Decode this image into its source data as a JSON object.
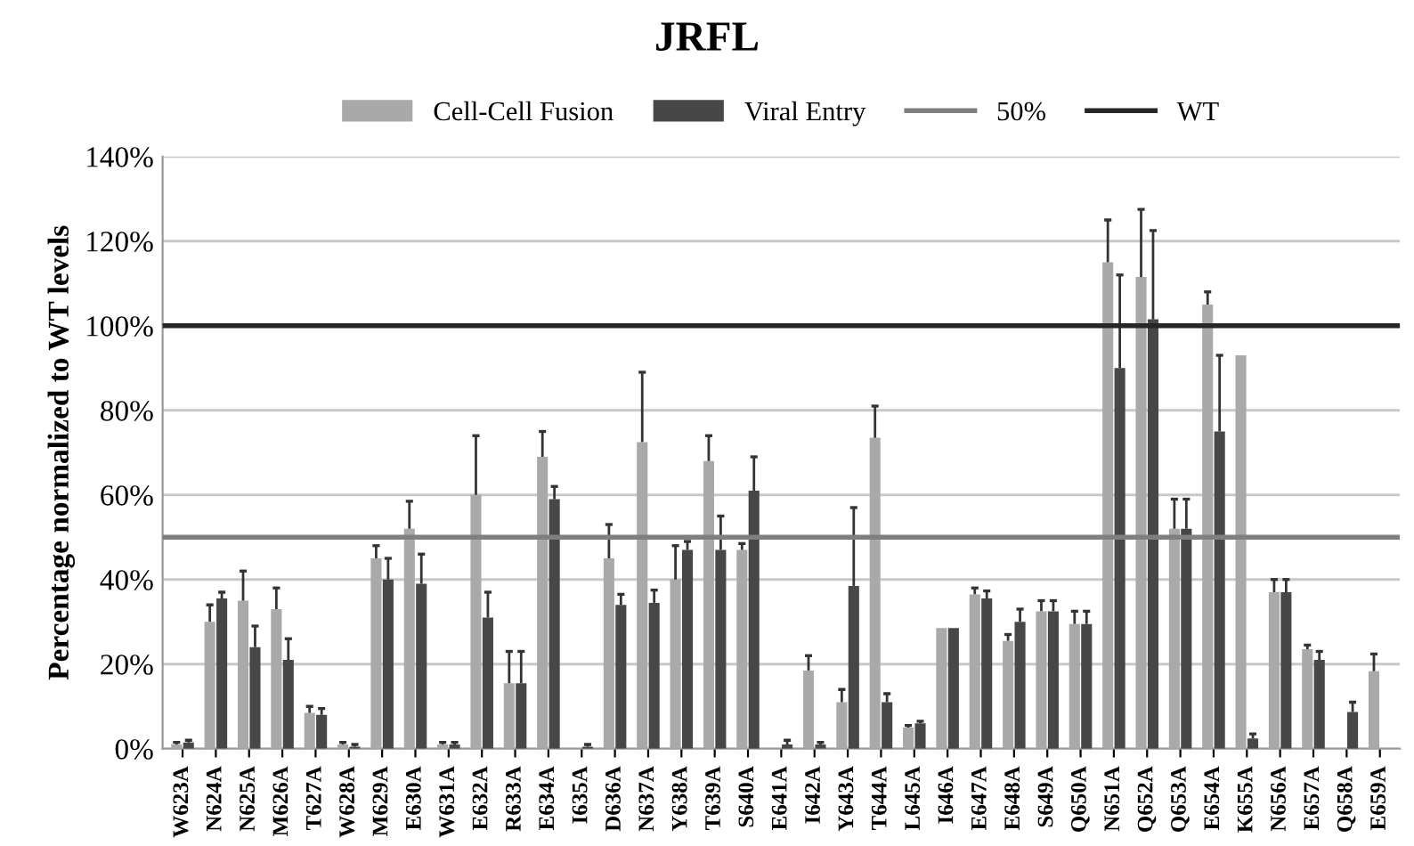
{
  "chart_data": {
    "type": "bar",
    "title": "JRFL",
    "ylabel": "Percentage normalized to WT levels",
    "categories": [
      "W623A",
      "N624A",
      "N625A",
      "M626A",
      "T627A",
      "W628A",
      "M629A",
      "E630A",
      "W631A",
      "E632A",
      "R633A",
      "E634A",
      "I635A",
      "D636A",
      "N637A",
      "Y638A",
      "T639A",
      "S640A",
      "E641A",
      "I642A",
      "Y643A",
      "T644A",
      "L645A",
      "I646A",
      "E647A",
      "E648A",
      "S649A",
      "Q650A",
      "N651A",
      "Q652A",
      "Q653A",
      "E654A",
      "K655A",
      "N656A",
      "E657A",
      "Q658A",
      "E659A"
    ],
    "series": [
      {
        "name": "Cell-Cell Fusion",
        "color": "#a9a9a9",
        "values": [
          1,
          30,
          35,
          33,
          8.5,
          1,
          45,
          52,
          1,
          60,
          15.5,
          69,
          null,
          45,
          72.5,
          40,
          68,
          47,
          null,
          18.5,
          11,
          73.5,
          5,
          28.5,
          36.5,
          25.5,
          32.5,
          29.5,
          115,
          111.5,
          52,
          105,
          93,
          37,
          23.5,
          null,
          18.3
        ],
        "errors": [
          [
            1,
            1.5
          ],
          [
            30,
            34
          ],
          [
            35,
            42
          ],
          [
            33,
            38
          ],
          [
            8.5,
            10
          ],
          [
            1,
            1.5
          ],
          [
            45,
            48
          ],
          [
            52,
            58.5
          ],
          [
            1,
            1.5
          ],
          [
            60,
            74
          ],
          [
            15.5,
            23
          ],
          [
            69,
            75
          ],
          null,
          [
            45,
            53
          ],
          [
            72.5,
            89
          ],
          [
            40,
            48
          ],
          [
            68,
            74
          ],
          [
            47,
            48.5
          ],
          null,
          [
            18.5,
            22
          ],
          [
            11,
            14
          ],
          [
            73.5,
            81
          ],
          [
            5,
            5.5
          ],
          null,
          [
            36.5,
            38
          ],
          [
            25.5,
            27
          ],
          [
            32.5,
            35
          ],
          [
            29.5,
            32.5
          ],
          [
            115,
            125
          ],
          [
            111.5,
            127.5
          ],
          [
            52,
            59
          ],
          [
            105,
            108
          ],
          null,
          [
            37,
            40
          ],
          [
            23.5,
            24.5
          ],
          null,
          [
            18.3,
            22.4
          ]
        ]
      },
      {
        "name": "Viral Entry",
        "color": "#474747",
        "values": [
          1.5,
          35.5,
          24,
          21,
          8,
          0.5,
          40,
          39,
          1,
          31,
          15.5,
          59,
          0.5,
          34,
          34.5,
          47,
          47,
          61,
          1,
          1,
          38.5,
          11,
          6,
          28.5,
          35.5,
          30,
          32.5,
          29.5,
          90,
          101.5,
          52,
          75,
          2.4,
          37,
          21,
          8.7,
          null
        ],
        "errors": [
          [
            1.5,
            2
          ],
          [
            35.5,
            37
          ],
          [
            24,
            29
          ],
          [
            21,
            26
          ],
          [
            8,
            9.5
          ],
          [
            0.5,
            1
          ],
          [
            40,
            45
          ],
          [
            39,
            46
          ],
          [
            1,
            1.5
          ],
          [
            31,
            37
          ],
          [
            15.5,
            23
          ],
          [
            59,
            62
          ],
          [
            0.5,
            1
          ],
          [
            34,
            36.5
          ],
          [
            34.5,
            37.5
          ],
          [
            47,
            49
          ],
          [
            47,
            55
          ],
          [
            61,
            69
          ],
          [
            1,
            2
          ],
          [
            1,
            1.5
          ],
          [
            38.5,
            57
          ],
          [
            11,
            13
          ],
          [
            6,
            6.5
          ],
          null,
          [
            35.5,
            37.3
          ],
          [
            30,
            33
          ],
          [
            32.5,
            35
          ],
          [
            29.5,
            32.5
          ],
          [
            90,
            112
          ],
          [
            101.5,
            122.5
          ],
          [
            52,
            59
          ],
          [
            75,
            93
          ],
          [
            2.4,
            3.5
          ],
          [
            37,
            40
          ],
          [
            21,
            23
          ],
          [
            8.7,
            11
          ],
          null
        ]
      }
    ],
    "ref_lines": [
      {
        "axis": "y",
        "value": 50,
        "label": "50%",
        "color": "#7f7f7f"
      },
      {
        "axis": "y",
        "value": 100,
        "label": "WT",
        "color": "#262626"
      }
    ],
    "ylim": [
      0,
      140
    ],
    "yticks": [
      {
        "value": 0,
        "label": "0%"
      },
      {
        "value": 20,
        "label": "20%"
      },
      {
        "value": 40,
        "label": "40%"
      },
      {
        "value": 60,
        "label": "60%"
      },
      {
        "value": 80,
        "label": "80%"
      },
      {
        "value": 100,
        "label": "100%"
      },
      {
        "value": 120,
        "label": "120%"
      },
      {
        "value": 140,
        "label": "140%"
      }
    ],
    "grid": "y",
    "legend": "top"
  }
}
